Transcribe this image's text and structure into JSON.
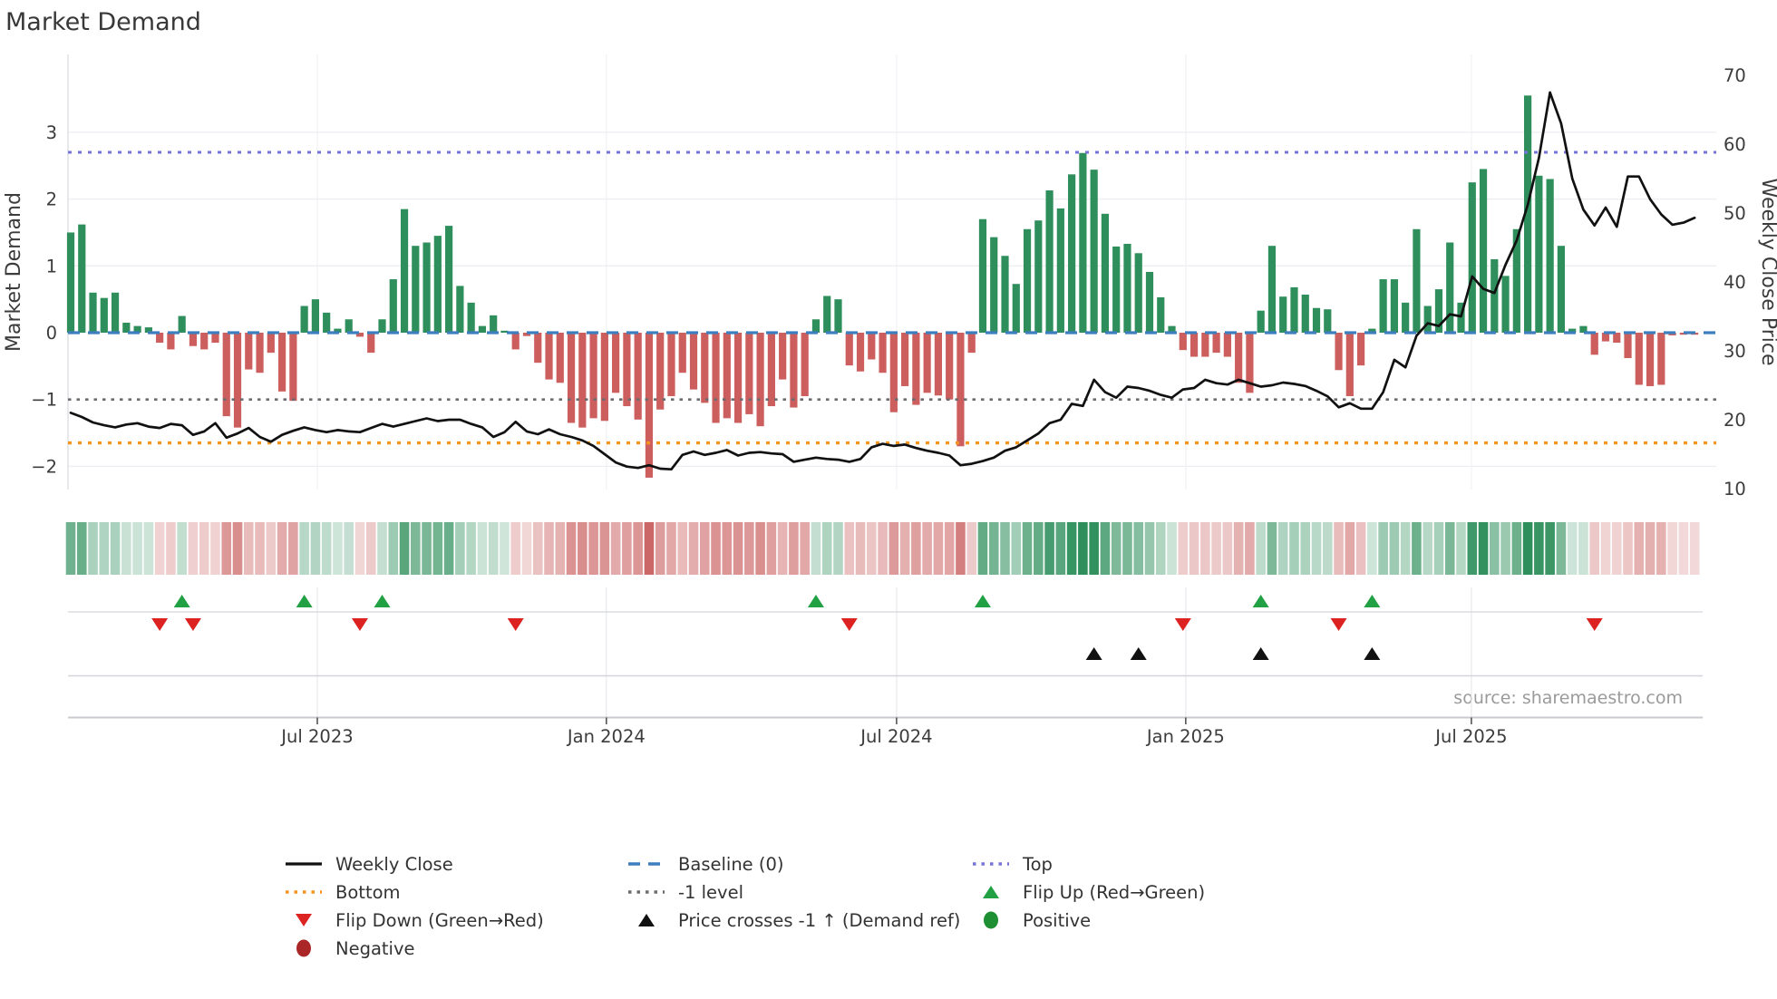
{
  "title": "Market Demand",
  "source": "source: sharemaestro.com",
  "axes": {
    "left_label": "Market Demand",
    "right_label": "Weekly Close Price",
    "left_ticks": [
      "3",
      "2",
      "1",
      "0",
      "−1",
      "−2"
    ],
    "left_tick_values": [
      3,
      2,
      1,
      0,
      -1,
      -2
    ],
    "right_ticks": [
      "70",
      "60",
      "50",
      "40",
      "30",
      "20",
      "10"
    ],
    "right_tick_values": [
      70,
      60,
      50,
      40,
      30,
      20,
      10
    ],
    "x_ticks": [
      {
        "label": "Jul 2023",
        "week": 22.17
      },
      {
        "label": "Jan 2024",
        "week": 48.16
      },
      {
        "label": "Jul 2024",
        "week": 74.25
      },
      {
        "label": "Jan 2025",
        "week": 100.25
      },
      {
        "label": "Jul 2025",
        "week": 125.93
      }
    ]
  },
  "colors": {
    "bar_positive": "#2f8f5c",
    "bar_negative": "#cd5e5e",
    "price_line": "#111111",
    "baseline": "#3d7ebf",
    "top_line": "#7673d9",
    "bottom_line": "#f5941e",
    "minus_one_line": "#6b6b70",
    "flip_up": "#22a044",
    "flip_down": "#dd2222",
    "price_cross": "#111111",
    "positive_dot": "#1f8f33",
    "negative_dot": "#ab2626"
  },
  "chart_data": {
    "type": "combo-bar-line",
    "title": "Market Demand",
    "xlabel": "",
    "ylabel_left": "Market Demand",
    "ylabel_right": "Weekly Close Price",
    "x_unit": "weeks",
    "n_weeks": 147,
    "x_range_labels": [
      "Jul 2023",
      "Jan 2024",
      "Jul 2024",
      "Jan 2025",
      "Jul 2025"
    ],
    "demand_ylim": [
      -2.6,
      4.2
    ],
    "price_ylim": [
      10,
      70
    ],
    "grid": true,
    "legend_position": "bottom",
    "levels": {
      "baseline": 0,
      "top": 2.7,
      "bottom": -1.65,
      "minus_one": -1
    },
    "demand_bars": [
      1.5,
      1.62,
      0.6,
      0.52,
      0.6,
      0.15,
      0.1,
      0.08,
      -0.15,
      -0.25,
      0.25,
      -0.2,
      -0.25,
      -0.15,
      -1.25,
      -1.42,
      -0.55,
      -0.6,
      -0.3,
      -0.88,
      -1.02,
      0.4,
      0.5,
      0.3,
      0.06,
      0.2,
      -0.06,
      -0.3,
      0.2,
      0.8,
      1.85,
      1.3,
      1.35,
      1.45,
      1.6,
      0.7,
      0.45,
      0.1,
      0.26,
      0.03,
      -0.25,
      -0.05,
      -0.45,
      -0.7,
      -0.75,
      -1.35,
      -1.42,
      -1.28,
      -1.32,
      -0.9,
      -1.1,
      -1.3,
      -2.17,
      -1.15,
      -0.95,
      -0.6,
      -0.85,
      -1.05,
      -1.35,
      -1.28,
      -1.35,
      -1.22,
      -1.4,
      -1.1,
      -0.7,
      -1.12,
      -0.95,
      0.2,
      0.55,
      0.5,
      -0.49,
      -0.58,
      -0.4,
      -0.6,
      -1.19,
      -0.8,
      -1.08,
      -0.9,
      -0.94,
      -1.0,
      -1.7,
      -0.3,
      1.7,
      1.43,
      1.15,
      0.73,
      1.55,
      1.68,
      2.13,
      1.86,
      2.37,
      2.69,
      2.44,
      1.78,
      1.29,
      1.33,
      1.19,
      0.91,
      0.53,
      0.1,
      -0.26,
      -0.36,
      -0.36,
      -0.3,
      -0.36,
      -0.75,
      -0.9,
      0.33,
      1.3,
      0.54,
      0.68,
      0.57,
      0.37,
      0.35,
      -0.56,
      -0.95,
      -0.49,
      0.06,
      0.8,
      0.8,
      0.45,
      1.55,
      0.4,
      0.65,
      1.35,
      0.45,
      2.25,
      2.45,
      1.1,
      0.85,
      1.55,
      3.55,
      2.35,
      2.3,
      1.3,
      0.06,
      0.1,
      -0.33,
      -0.13,
      -0.15,
      -0.38,
      -0.78,
      -0.8,
      -0.78,
      -0.04,
      -0.03,
      -0.03
    ],
    "weekly_close": [
      21.0,
      20.4,
      19.6,
      19.2,
      18.9,
      19.3,
      19.5,
      19.0,
      18.8,
      19.4,
      19.2,
      17.8,
      18.3,
      19.5,
      17.4,
      18.0,
      18.8,
      17.5,
      16.8,
      17.8,
      18.4,
      18.9,
      18.5,
      18.2,
      18.5,
      18.3,
      18.2,
      18.8,
      19.4,
      19.0,
      19.4,
      19.8,
      20.2,
      19.8,
      20.0,
      20.0,
      19.4,
      18.9,
      17.5,
      18.2,
      19.7,
      18.3,
      17.9,
      18.6,
      17.9,
      17.5,
      17.0,
      16.2,
      15.0,
      13.8,
      13.2,
      13.0,
      13.4,
      12.9,
      12.8,
      14.9,
      15.4,
      14.9,
      15.2,
      15.6,
      14.8,
      15.2,
      15.3,
      15.1,
      15.0,
      13.9,
      14.2,
      14.5,
      14.3,
      14.2,
      13.9,
      14.3,
      16.0,
      16.5,
      16.2,
      16.4,
      15.9,
      15.5,
      15.2,
      14.8,
      13.4,
      13.6,
      14.0,
      14.5,
      15.5,
      16.0,
      17.0,
      18.0,
      19.5,
      20.0,
      22.3,
      22.0,
      25.8,
      24.0,
      23.2,
      24.8,
      24.6,
      24.2,
      23.6,
      23.2,
      24.4,
      24.6,
      25.8,
      25.3,
      25.1,
      25.8,
      25.3,
      24.8,
      25.0,
      25.4,
      25.2,
      24.9,
      24.2,
      23.4,
      21.8,
      22.4,
      21.6,
      21.6,
      24.0,
      28.7,
      27.6,
      32.2,
      34.0,
      33.6,
      35.3,
      35.0,
      40.8,
      39.0,
      38.4,
      42.5,
      46.0,
      51.2,
      58.0,
      67.5,
      63.0,
      55.0,
      50.5,
      48.2,
      50.8,
      48.0,
      55.3,
      55.3,
      52.0,
      49.8,
      48.3,
      48.6,
      49.3
    ],
    "flip_up_weeks": [
      10,
      21,
      28,
      67,
      82,
      107,
      117
    ],
    "flip_down_weeks": [
      8,
      11,
      26,
      40,
      70,
      100,
      114,
      137
    ],
    "price_cross_weeks": [
      92,
      96,
      107,
      117
    ]
  },
  "legend": {
    "columns": [
      [
        {
          "label": "Weekly Close",
          "marker": "line",
          "color": "#111111"
        },
        {
          "label": "Bottom",
          "marker": "dots",
          "color": "#f5941e"
        },
        {
          "label": "Flip Down (Green→Red)",
          "marker": "tri-down",
          "color": "#dd2222"
        },
        {
          "label": "Negative",
          "marker": "circle",
          "color": "#ab2626"
        }
      ],
      [
        {
          "label": "Baseline (0)",
          "marker": "dashes",
          "color": "#3d7ebf"
        },
        {
          "label": "-1 level",
          "marker": "dots",
          "color": "#6b6b70"
        },
        {
          "label": "Price crosses -1 ↑ (Demand ref)",
          "marker": "tri-up",
          "color": "#111111"
        }
      ],
      [
        {
          "label": "Top",
          "marker": "dots",
          "color": "#7673d9"
        },
        {
          "label": "Flip Up (Red→Green)",
          "marker": "tri-up",
          "color": "#22a044"
        },
        {
          "label": "Positive",
          "marker": "circle",
          "color": "#1f8f33"
        }
      ]
    ]
  }
}
